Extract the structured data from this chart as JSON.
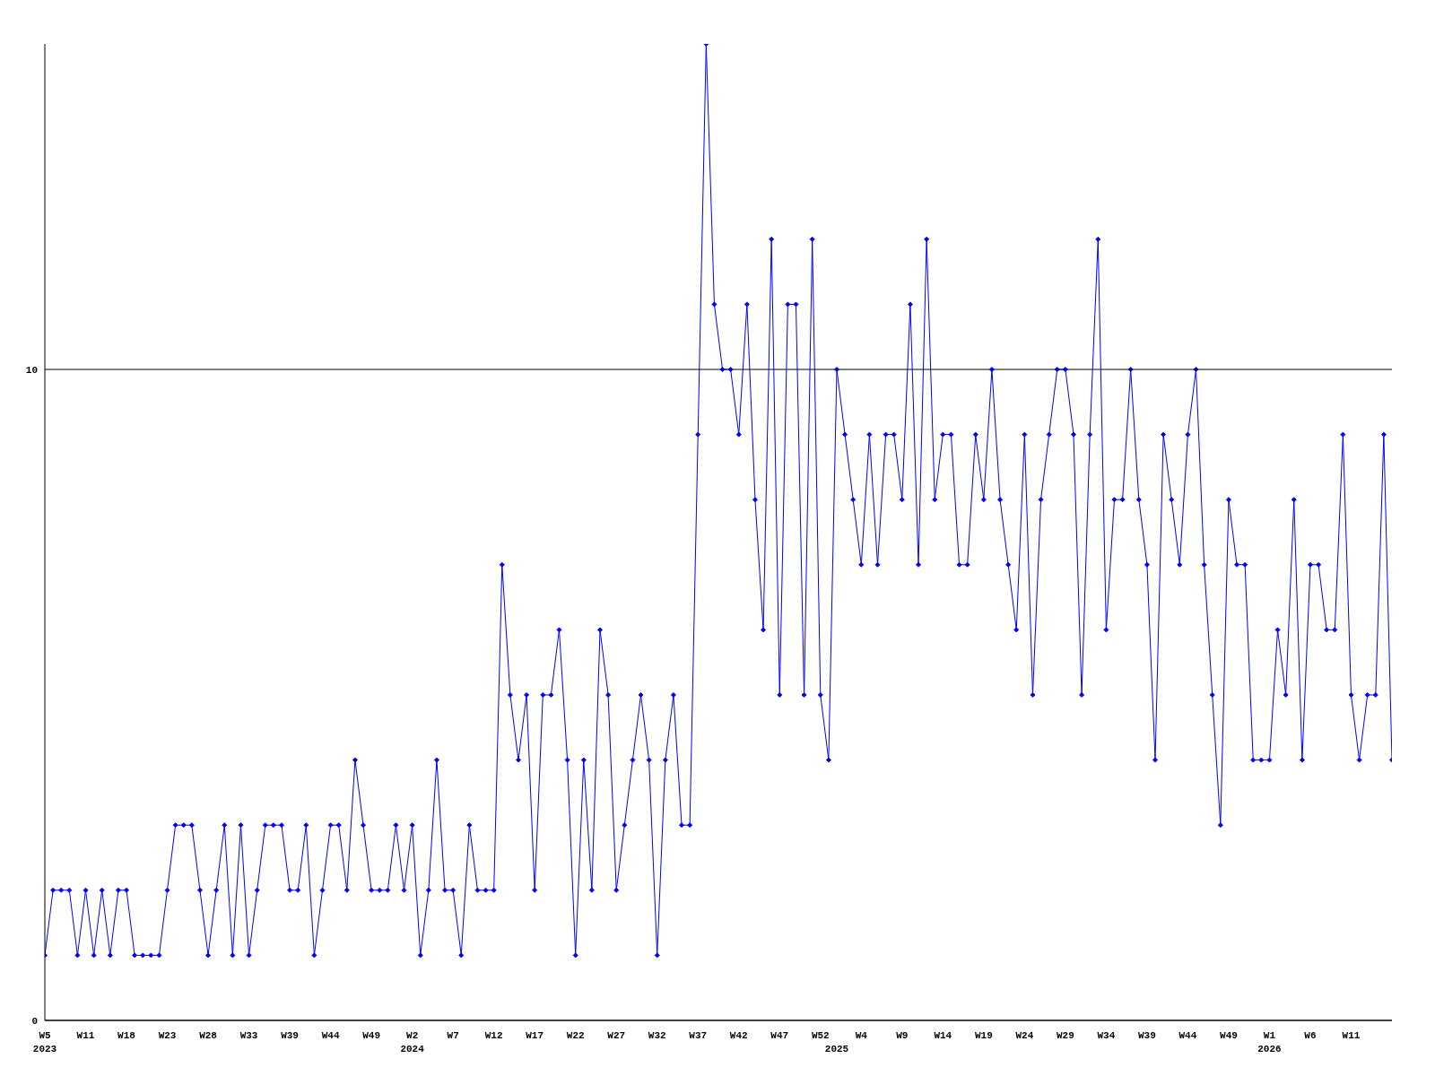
{
  "chart_data": {
    "type": "line",
    "categories": [
      "W5\n2023",
      null,
      null,
      null,
      null,
      "W11",
      null,
      null,
      null,
      null,
      "W18",
      null,
      null,
      null,
      null,
      "W23",
      null,
      null,
      null,
      null,
      "W28",
      null,
      null,
      null,
      null,
      "W33",
      null,
      null,
      null,
      null,
      "W39",
      null,
      null,
      null,
      null,
      "W44",
      null,
      null,
      null,
      null,
      "W49",
      null,
      null,
      null,
      null,
      "W2\n2024",
      null,
      null,
      null,
      null,
      "W7",
      null,
      null,
      null,
      null,
      "W12",
      null,
      null,
      null,
      null,
      "W17",
      null,
      null,
      null,
      null,
      "W22",
      null,
      null,
      null,
      null,
      "W27",
      null,
      null,
      null,
      null,
      "W32",
      null,
      null,
      null,
      null,
      "W37",
      null,
      null,
      null,
      null,
      "W42",
      null,
      null,
      null,
      null,
      "W47",
      null,
      null,
      null,
      null,
      "W52",
      null,
      "\n2025",
      null,
      null,
      "W4",
      null,
      null,
      null,
      null,
      "W9",
      null,
      null,
      null,
      null,
      "W14",
      null,
      null,
      null,
      null,
      "W19",
      null,
      null,
      null,
      null,
      "W24",
      null,
      null,
      null,
      null,
      "W29",
      null,
      null,
      null,
      null,
      "W34",
      null,
      null,
      null,
      null,
      "W39",
      null,
      null,
      null,
      null,
      "W44",
      null,
      null,
      null,
      null,
      "W49",
      null,
      null,
      null,
      null,
      "W1\n2026",
      null,
      null,
      null,
      null,
      "W6",
      null,
      null,
      null,
      null,
      "W11",
      null,
      null,
      null,
      null,
      null
    ],
    "series": [
      {
        "color": "#0000ff",
        "values": [
          1,
          2,
          2,
          2,
          1,
          2,
          1,
          2,
          1,
          2,
          2,
          1,
          1,
          1,
          1,
          2,
          3,
          3,
          3,
          2,
          1,
          2,
          3,
          1,
          3,
          1,
          2,
          3,
          3,
          3,
          2,
          2,
          3,
          1,
          2,
          3,
          3,
          2,
          4,
          3,
          2,
          2,
          2,
          3,
          2,
          3,
          1,
          2,
          4,
          2,
          2,
          1,
          3,
          2,
          2,
          2,
          7,
          5,
          4,
          5,
          2,
          5,
          5,
          6,
          4,
          1,
          4,
          2,
          6,
          5,
          2,
          3,
          4,
          5,
          4,
          1,
          4,
          5,
          3,
          3,
          9,
          15,
          11,
          10,
          10,
          9,
          11,
          8,
          6,
          12,
          5,
          11,
          11,
          5,
          12,
          5,
          4,
          10,
          9,
          8,
          7,
          9,
          7,
          9,
          9,
          8,
          11,
          7,
          12,
          8,
          9,
          9,
          7,
          7,
          9,
          8,
          10,
          8,
          7,
          6,
          9,
          5,
          8,
          9,
          10,
          10,
          9,
          5,
          9,
          12,
          6,
          8,
          8,
          10,
          8,
          7,
          4,
          9,
          8,
          7,
          9,
          10,
          7,
          5,
          3,
          8,
          7,
          7,
          4,
          4,
          4,
          6,
          5,
          8,
          4,
          7,
          7,
          6,
          6,
          9,
          5,
          4,
          5,
          5,
          9,
          4
        ]
      }
    ],
    "ylim": [
      0,
      15
    ],
    "yticks": [
      0,
      10
    ],
    "grid": "y",
    "marker": "diamond",
    "line_style": "solid",
    "legend": false
  }
}
